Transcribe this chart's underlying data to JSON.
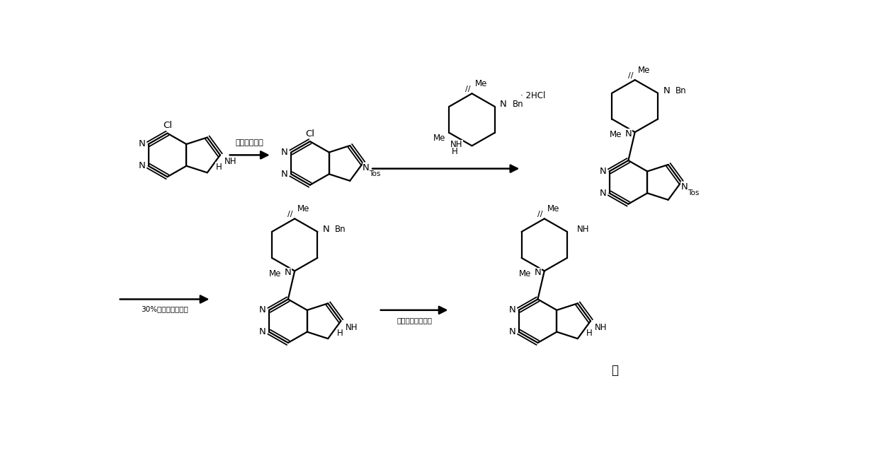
{
  "bg_color": "#ffffff",
  "figsize": [
    12.4,
    6.41
  ],
  "dpi": 100,
  "lw": 1.6,
  "lw_d": 1.3,
  "fs": 9.5,
  "fss": 8.5,
  "reagent1": "对甲苯磺酰氯",
  "reagent2": "30%氯氧化钓水溶液",
  "reagent3": "甲酸锨，氯氧化钒",
  "period": "。"
}
